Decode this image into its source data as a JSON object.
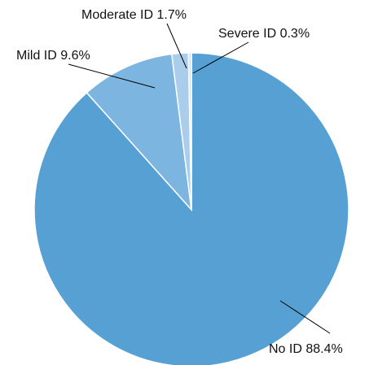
{
  "chart_data": {
    "type": "pie",
    "start_angle": "12 o'clock",
    "direction": "clockwise",
    "slices": [
      {
        "name": "No ID",
        "value": 88.4,
        "label": "No ID 88.4%",
        "color": "#56a0d3"
      },
      {
        "name": "Mild ID",
        "value": 9.6,
        "label": "Mild ID 9.6%",
        "color": "#7cb5e0"
      },
      {
        "name": "Moderate ID",
        "value": 1.7,
        "label": "Moderate ID 1.7%",
        "color": "#a9cdeb"
      },
      {
        "name": "Severe ID",
        "value": 0.3,
        "label": "Severe ID 0.3%",
        "color": "#cfe3f4"
      }
    ]
  }
}
